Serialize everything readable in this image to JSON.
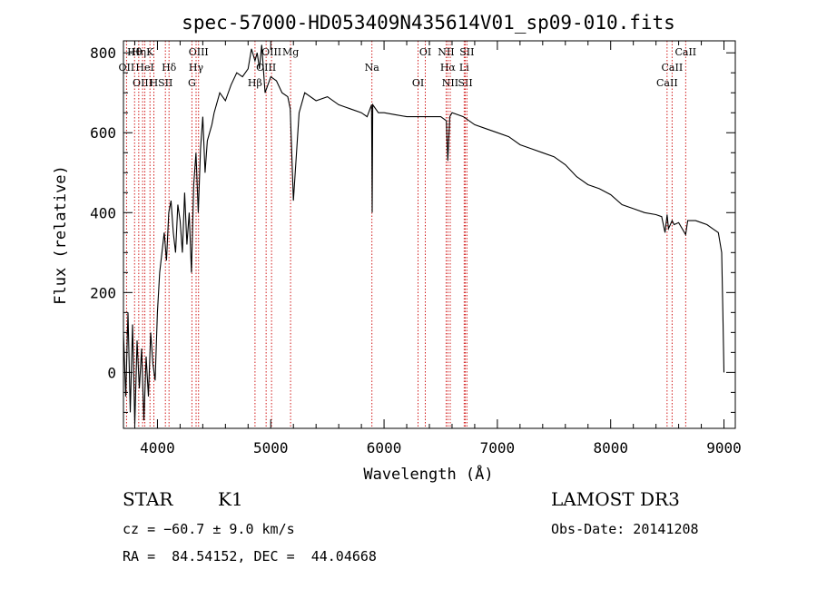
{
  "chart_data": {
    "type": "line",
    "title": "spec-57000-HD053409N435614V01_sp09-010.fits",
    "xlabel": "Wavelength (Å)",
    "ylabel": "Flux (relative)",
    "xlim": [
      3700,
      9100
    ],
    "ylim": [
      -140,
      830
    ],
    "x_ticks": [
      4000,
      5000,
      6000,
      7000,
      8000,
      9000
    ],
    "y_ticks": [
      0,
      200,
      400,
      600,
      800
    ],
    "spectrum": {
      "name": "flux",
      "x": [
        3700,
        3720,
        3740,
        3760,
        3780,
        3800,
        3820,
        3840,
        3860,
        3880,
        3900,
        3920,
        3940,
        3960,
        3980,
        4000,
        4020,
        4040,
        4060,
        4080,
        4100,
        4120,
        4140,
        4160,
        4180,
        4200,
        4220,
        4240,
        4260,
        4280,
        4300,
        4320,
        4340,
        4360,
        4380,
        4400,
        4420,
        4440,
        4460,
        4480,
        4500,
        4550,
        4600,
        4650,
        4700,
        4750,
        4800,
        4830,
        4861,
        4880,
        4900,
        4920,
        4950,
        5000,
        5050,
        5100,
        5150,
        5172,
        5200,
        5250,
        5300,
        5400,
        5500,
        5600,
        5700,
        5800,
        5850,
        5890,
        5895,
        5900,
        5950,
        6000,
        6100,
        6200,
        6300,
        6400,
        6500,
        6550,
        6563,
        6580,
        6600,
        6650,
        6700,
        6800,
        6900,
        7000,
        7100,
        7200,
        7300,
        7400,
        7500,
        7600,
        7700,
        7800,
        7900,
        8000,
        8100,
        8200,
        8300,
        8400,
        8450,
        8480,
        8498,
        8510,
        8542,
        8560,
        8600,
        8662,
        8680,
        8700,
        8750,
        8800,
        8850,
        8900,
        8950,
        8980,
        8990,
        9000
      ],
      "y": [
        100,
        -60,
        150,
        -100,
        120,
        -130,
        80,
        -40,
        60,
        -120,
        40,
        -60,
        100,
        20,
        -20,
        150,
        250,
        300,
        350,
        280,
        400,
        430,
        350,
        300,
        420,
        380,
        300,
        450,
        320,
        400,
        250,
        470,
        550,
        400,
        560,
        640,
        500,
        580,
        600,
        620,
        650,
        700,
        680,
        720,
        750,
        740,
        760,
        810,
        780,
        800,
        760,
        820,
        700,
        740,
        730,
        700,
        690,
        660,
        430,
        650,
        700,
        680,
        690,
        670,
        660,
        650,
        640,
        670,
        400,
        670,
        650,
        650,
        645,
        640,
        640,
        640,
        640,
        630,
        530,
        640,
        650,
        645,
        640,
        620,
        610,
        600,
        590,
        570,
        560,
        550,
        540,
        520,
        490,
        470,
        460,
        445,
        420,
        410,
        400,
        395,
        390,
        350,
        395,
        360,
        380,
        370,
        375,
        345,
        380,
        380,
        380,
        375,
        370,
        360,
        350,
        300,
        150,
        0
      ]
    },
    "lines": [
      {
        "label": "Hθ",
        "x": 3798
      },
      {
        "label": "OII",
        "x": 3727
      },
      {
        "label": "OIII",
        "x": 3869
      },
      {
        "label": "K",
        "x": 3934
      },
      {
        "label": "HeI",
        "x": 3889
      },
      {
        "label": "H",
        "x": 3968
      },
      {
        "label": "Hη",
        "x": 3835
      },
      {
        "label": "Hδ",
        "x": 4102
      },
      {
        "label": "SII",
        "x": 4070
      },
      {
        "label": "OIII",
        "x": 4363
      },
      {
        "label": "Hγ",
        "x": 4341
      },
      {
        "label": "G",
        "x": 4304
      },
      {
        "label": "OIII",
        "x": 5007
      },
      {
        "label": "OIII",
        "x": 4959
      },
      {
        "label": "Hβ",
        "x": 4861
      },
      {
        "label": "Mg",
        "x": 5175
      },
      {
        "label": "Na",
        "x": 5893
      },
      {
        "label": "OI",
        "x": 6300
      },
      {
        "label": "OI",
        "x": 6364
      },
      {
        "label": "Hα",
        "x": 6563
      },
      {
        "label": "SII",
        "x": 6717
      },
      {
        "label": "NII",
        "x": 6548
      },
      {
        "label": "Li",
        "x": 6707
      },
      {
        "label": "NII",
        "x": 6584
      },
      {
        "label": "SII",
        "x": 6731
      },
      {
        "label": "CaII",
        "x": 8542
      },
      {
        "label": "CaII",
        "x": 8498
      },
      {
        "label": "CaII",
        "x": 8662
      }
    ]
  },
  "footer": {
    "object_type": "STAR",
    "subclass": "K1",
    "survey": "LAMOST DR3",
    "cz": "cz = −60.7 ± 9.0 km/s",
    "obs_date": "Obs-Date: 20141208",
    "coords": "RA =  84.54152, DEC =  44.04668"
  },
  "colors": {
    "spectrum": "#000000",
    "line_markers": "#cc0000"
  }
}
